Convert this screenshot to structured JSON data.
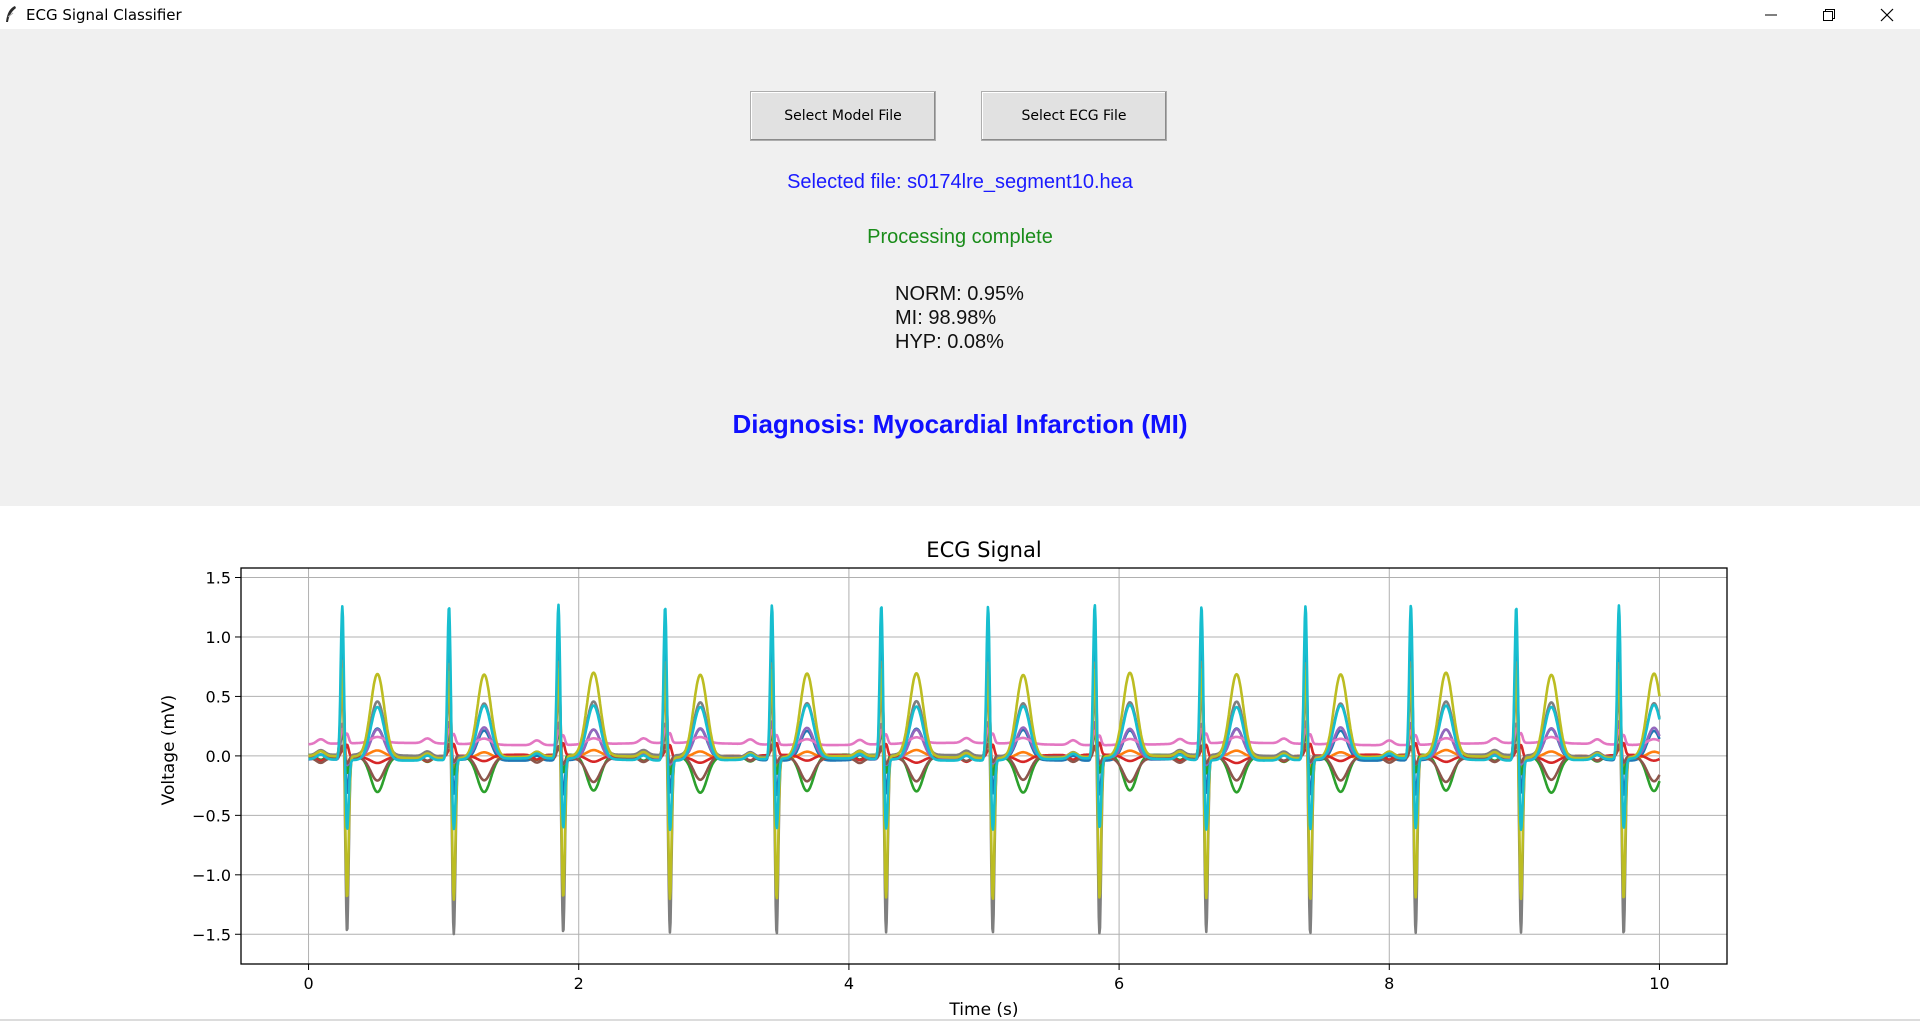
{
  "window": {
    "title": "ECG Signal Classifier",
    "minimize_icon": "minimize-icon",
    "maximize_icon": "restore-icon",
    "close_icon": "close-icon"
  },
  "buttons": {
    "select_model": "Select Model File",
    "select_ecg": "Select ECG File"
  },
  "selected_file": "Selected file: s0174lre_segment10.hea",
  "status": "Processing complete",
  "probabilities": [
    "NORM: 0.95%",
    "MI: 98.98%",
    "HYP: 0.08%"
  ],
  "diagnosis": "Diagnosis: Myocardial Infarction (MI)",
  "colors": {
    "selected_file": "#1a1aff",
    "status": "#1a8c1a",
    "diagnosis": "#1010ff"
  },
  "chart_data": {
    "type": "line",
    "title": "ECG Signal",
    "xlabel": "Time (s)",
    "ylabel": "Voltage (mV)",
    "xlim": [
      -0.5,
      10.5
    ],
    "ylim": [
      -1.75,
      1.58
    ],
    "xticks": [
      0,
      2,
      4,
      6,
      8,
      10
    ],
    "yticks": [
      -1.5,
      -1.0,
      -0.5,
      0.0,
      0.5,
      1.0,
      1.5
    ],
    "xtick_labels": [
      "0",
      "2",
      "4",
      "6",
      "8",
      "10"
    ],
    "ytick_labels": [
      "−1.5",
      "−1.0",
      "−0.5",
      "0.0",
      "0.5",
      "1.0",
      "1.5"
    ],
    "grid": true,
    "beat_times": [
      0.25,
      1.04,
      1.85,
      2.64,
      3.43,
      4.24,
      5.03,
      5.82,
      6.61,
      7.38,
      8.16,
      8.94,
      9.7
    ],
    "series": [
      {
        "color": "#1f77b4",
        "r_peak": 0.95,
        "s_trough": -0.3,
        "t_wave": 0.25,
        "baseline": -0.03
      },
      {
        "color": "#ff7f0e",
        "r_peak": 0.8,
        "s_trough": -0.1,
        "t_wave": 0.05,
        "baseline": -0.01
      },
      {
        "color": "#2ca02c",
        "r_peak": 0.2,
        "s_trough": -0.15,
        "t_wave": -0.3,
        "baseline": 0.0
      },
      {
        "color": "#d62728",
        "r_peak": 0.05,
        "s_trough": 0.1,
        "t_wave": -0.05,
        "baseline": 0.0
      },
      {
        "color": "#9467bd",
        "r_peak": 0.3,
        "s_trough": -0.05,
        "t_wave": 0.25,
        "baseline": -0.02
      },
      {
        "color": "#8c564b",
        "r_peak": 0.1,
        "s_trough": -0.05,
        "t_wave": -0.2,
        "baseline": -0.01
      },
      {
        "color": "#e377c2",
        "r_peak": 0.12,
        "s_trough": 0.08,
        "t_wave": 0.05,
        "baseline": 0.1
      },
      {
        "color": "#7f7f7f",
        "r_peak": 0.6,
        "s_trough": -1.5,
        "t_wave": 0.45,
        "baseline": 0.0
      },
      {
        "color": "#bcbd22",
        "r_peak": 0.75,
        "s_trough": -1.2,
        "t_wave": 0.7,
        "baseline": -0.01
      },
      {
        "color": "#17becf",
        "r_peak": 1.3,
        "s_trough": -0.6,
        "t_wave": 0.45,
        "baseline": -0.03
      }
    ]
  }
}
